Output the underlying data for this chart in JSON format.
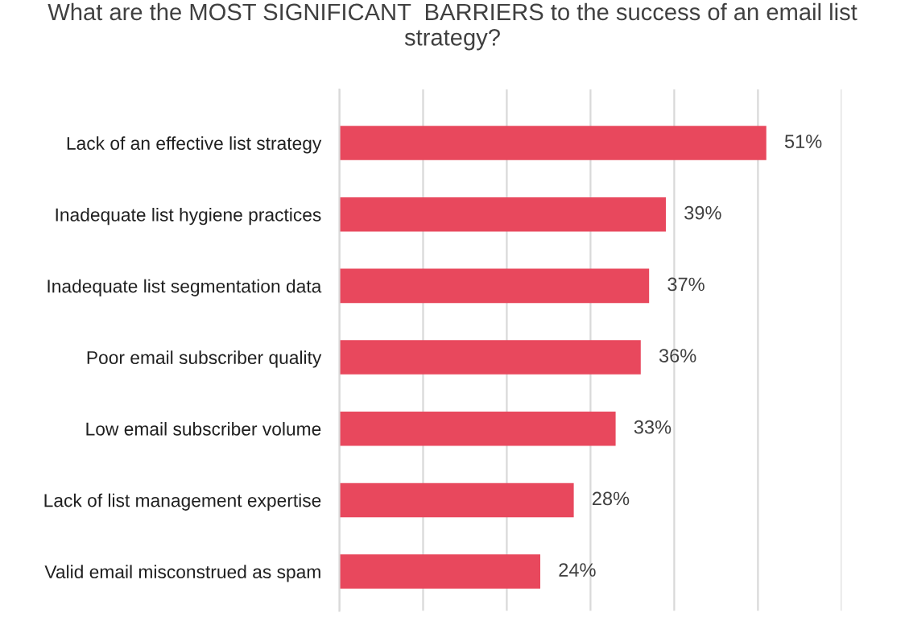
{
  "chart_data": {
    "type": "bar",
    "orientation": "horizontal",
    "title": "What are the MOST SIGNIFICANT  BARRIERS to the success of an email list strategy?",
    "categories": [
      "Lack of an effective list strategy",
      "Inadequate list hygiene practices",
      "Inadequate list segmentation data",
      "Poor email subscriber quality",
      "Low email subscriber volume",
      "Lack of list management expertise",
      "Valid email misconstrued as spam"
    ],
    "values": [
      51,
      39,
      37,
      36,
      33,
      28,
      24
    ],
    "value_labels": [
      "51%",
      "39%",
      "37%",
      "36%",
      "33%",
      "28%",
      "24%"
    ],
    "color": "#e8485d",
    "xlim": [
      0,
      60
    ],
    "xticks": [
      {
        "value": 0,
        "label": null
      },
      {
        "value": 10,
        "label": null
      },
      {
        "value": 20,
        "label": null
      },
      {
        "value": 30,
        "label": null
      },
      {
        "value": 40,
        "label": null
      },
      {
        "value": 50,
        "label": null
      },
      {
        "value": 60,
        "label": null
      }
    ],
    "tick_labels": "y",
    "grid": "x",
    "legend": false
  }
}
